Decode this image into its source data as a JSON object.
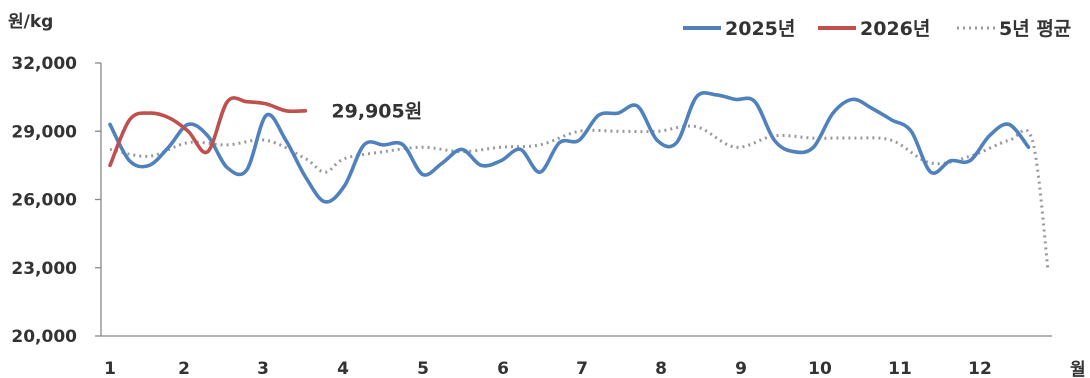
{
  "chart_data": {
    "type": "line",
    "ylabel": "원/kg",
    "xlabel": "월",
    "ylim": [
      20000,
      32000
    ],
    "xlim": [
      1,
      13
    ],
    "yticks": [
      20000,
      23000,
      26000,
      29000,
      32000
    ],
    "ytick_labels": [
      "20,000",
      "23,000",
      "26,000",
      "29,000",
      "32,000"
    ],
    "xticks": [
      1,
      2,
      3,
      4,
      5,
      6,
      7,
      8,
      9,
      10,
      11,
      12
    ],
    "xtick_labels": [
      "1",
      "2",
      "3",
      "4",
      "5",
      "6",
      "7",
      "8",
      "9",
      "10",
      "11",
      "12"
    ],
    "grid": false,
    "legend_position": "top-right",
    "series": [
      {
        "name": "2025년",
        "color": "#4f81bd",
        "style": "solid",
        "points": [
          [
            1.0,
            29300
          ],
          [
            1.25,
            27700
          ],
          [
            1.5,
            27500
          ],
          [
            1.75,
            28300
          ],
          [
            2.0,
            29300
          ],
          [
            2.25,
            28800
          ],
          [
            2.5,
            27400
          ],
          [
            2.75,
            27300
          ],
          [
            3.0,
            29700
          ],
          [
            3.25,
            28600
          ],
          [
            3.5,
            27000
          ],
          [
            3.75,
            25900
          ],
          [
            4.0,
            26600
          ],
          [
            4.25,
            28400
          ],
          [
            4.5,
            28400
          ],
          [
            4.75,
            28400
          ],
          [
            5.0,
            27100
          ],
          [
            5.25,
            27600
          ],
          [
            5.5,
            28200
          ],
          [
            5.75,
            27500
          ],
          [
            6.0,
            27700
          ],
          [
            6.25,
            28200
          ],
          [
            6.5,
            27200
          ],
          [
            6.75,
            28500
          ],
          [
            7.0,
            28600
          ],
          [
            7.25,
            29700
          ],
          [
            7.5,
            29800
          ],
          [
            7.75,
            30100
          ],
          [
            8.0,
            28600
          ],
          [
            8.25,
            28500
          ],
          [
            8.5,
            30500
          ],
          [
            8.75,
            30600
          ],
          [
            9.0,
            30400
          ],
          [
            9.25,
            30300
          ],
          [
            9.5,
            28600
          ],
          [
            9.75,
            28100
          ],
          [
            10.0,
            28300
          ],
          [
            10.25,
            29800
          ],
          [
            10.5,
            30400
          ],
          [
            10.75,
            30000
          ],
          [
            11.0,
            29500
          ],
          [
            11.25,
            29000
          ],
          [
            11.5,
            27200
          ],
          [
            11.75,
            27700
          ],
          [
            12.0,
            27700
          ],
          [
            12.25,
            28800
          ],
          [
            12.5,
            29300
          ],
          [
            12.75,
            28300
          ]
        ]
      },
      {
        "name": "2026년",
        "color": "#c0504d",
        "style": "solid",
        "points": [
          [
            1.0,
            27500
          ],
          [
            1.25,
            29500
          ],
          [
            1.5,
            29800
          ],
          [
            1.75,
            29600
          ],
          [
            2.0,
            29000
          ],
          [
            2.25,
            28100
          ],
          [
            2.5,
            30300
          ],
          [
            2.75,
            30300
          ],
          [
            3.0,
            30200
          ],
          [
            3.25,
            29900
          ],
          [
            3.5,
            29900
          ]
        ]
      },
      {
        "name": "5년 평균",
        "color": "#999999",
        "style": "dotted",
        "points": [
          [
            1.0,
            28200
          ],
          [
            1.5,
            27900
          ],
          [
            2.0,
            28500
          ],
          [
            2.5,
            28400
          ],
          [
            3.0,
            28600
          ],
          [
            3.5,
            27800
          ],
          [
            3.75,
            27200
          ],
          [
            4.0,
            27800
          ],
          [
            4.5,
            28100
          ],
          [
            5.0,
            28300
          ],
          [
            5.5,
            28100
          ],
          [
            6.0,
            28300
          ],
          [
            6.5,
            28400
          ],
          [
            7.0,
            29000
          ],
          [
            7.5,
            29000
          ],
          [
            8.0,
            29000
          ],
          [
            8.5,
            29200
          ],
          [
            9.0,
            28300
          ],
          [
            9.5,
            28800
          ],
          [
            10.0,
            28700
          ],
          [
            10.5,
            28700
          ],
          [
            11.0,
            28600
          ],
          [
            11.5,
            27600
          ],
          [
            12.0,
            27900
          ],
          [
            12.5,
            28600
          ],
          [
            12.8,
            28600
          ],
          [
            13.0,
            22900
          ]
        ]
      }
    ],
    "annotations": [
      {
        "text": "29,905원",
        "x": 3.5,
        "y": 29905
      }
    ]
  }
}
